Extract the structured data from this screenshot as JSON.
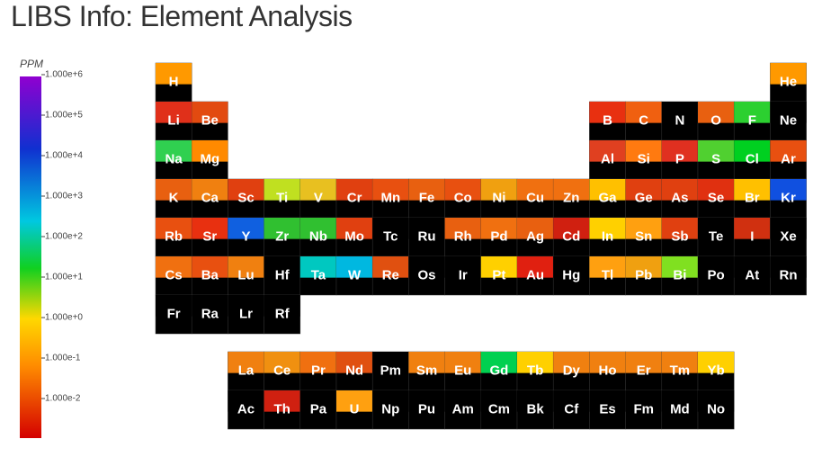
{
  "header": {
    "title": "LIBS Info: Element Analysis"
  },
  "colorbar": {
    "label": "PPM",
    "ticks": [
      "1.000e+6",
      "1.000e+5",
      "1.000e+4",
      "1.000e+3",
      "1.000e+2",
      "1.000e+1",
      "1.000e+0",
      "1.000e-1",
      "1.000e-2"
    ]
  },
  "elements": {
    "symbols": [
      "H",
      "He",
      "Li",
      "Be",
      "B",
      "C",
      "N",
      "O",
      "F",
      "Ne",
      "Na",
      "Mg",
      "Al",
      "Si",
      "P",
      "S",
      "Cl",
      "Ar",
      "K",
      "Ca",
      "Sc",
      "Ti",
      "V",
      "Cr",
      "Mn",
      "Fe",
      "Co",
      "Ni",
      "Cu",
      "Zn",
      "Ga",
      "Ge",
      "As",
      "Se",
      "Br",
      "Kr",
      "Rb",
      "Sr",
      "Y",
      "Zr",
      "Nb",
      "Mo",
      "Tc",
      "Ru",
      "Rh",
      "Pd",
      "Ag",
      "Cd",
      "In",
      "Sn",
      "Sb",
      "Te",
      "I",
      "Xe",
      "Cs",
      "Ba",
      "Lu",
      "Hf",
      "Ta",
      "W",
      "Re",
      "Os",
      "Ir",
      "Pt",
      "Au",
      "Hg",
      "Tl",
      "Pb",
      "Bi",
      "Po",
      "At",
      "Rn",
      "Fr",
      "Ra",
      "Lr",
      "Rf",
      "La",
      "Ce",
      "Pr",
      "Nd",
      "Pm",
      "Sm",
      "Eu",
      "Gd",
      "Tb",
      "Dy",
      "Ho",
      "Er",
      "Tm",
      "Yb",
      "Ac",
      "Th",
      "Pa",
      "U",
      "Np",
      "Pu",
      "Am",
      "Cm",
      "Bk",
      "Cf",
      "Es",
      "Fm",
      "Md",
      "No"
    ],
    "colors": [
      "#ff9900",
      "#ff9900",
      "#e0301a",
      "#e24a10",
      "#e83010",
      "#f06010",
      "#000000",
      "#e86010",
      "#2cd030",
      "#000000",
      "#30d050",
      "#ff8a00",
      "#e04020",
      "#ff7a10",
      "#e03020",
      "#50d030",
      "#00d020",
      "#e85010",
      "#e86010",
      "#f08010",
      "#e04010",
      "#c0e020",
      "#e8c020",
      "#e04010",
      "#e85010",
      "#e86010",
      "#e85010",
      "#f0a010",
      "#f07010",
      "#f07010",
      "#ffc000",
      "#e04010",
      "#e04010",
      "#e03010",
      "#ffc000",
      "#1050e0",
      "#e85010",
      "#e83010",
      "#1060e0",
      "#30c030",
      "#30c030",
      "#e04010",
      "#000000",
      "#000000",
      "#e86010",
      "#f07010",
      "#e86010",
      "#d02010",
      "#ffd000",
      "#ffa010",
      "#e04010",
      "#000000",
      "#d03010",
      "#000000",
      "#f07010",
      "#e85010",
      "#f08010",
      "#000000",
      "#00c8c0",
      "#00b8e0",
      "#e05010",
      "#000000",
      "#000000",
      "#ffd000",
      "#e02010",
      "#000000",
      "#ffa010",
      "#f0a010",
      "#80e020",
      "#000000",
      "#000000",
      "#000000",
      "#000000",
      "#000000",
      "#000000",
      "#000000",
      "#f08010",
      "#f09010",
      "#f07010",
      "#e05010",
      "#000000",
      "#f08010",
      "#f08010",
      "#00d050",
      "#ffd000",
      "#f08010",
      "#f08010",
      "#f08010",
      "#f08010",
      "#ffd000",
      "#000000",
      "#d02010",
      "#000000",
      "#ffa010",
      "#000000",
      "#000000",
      "#000000",
      "#000000",
      "#000000",
      "#000000",
      "#000000",
      "#000000",
      "#000000",
      "#000000"
    ]
  }
}
